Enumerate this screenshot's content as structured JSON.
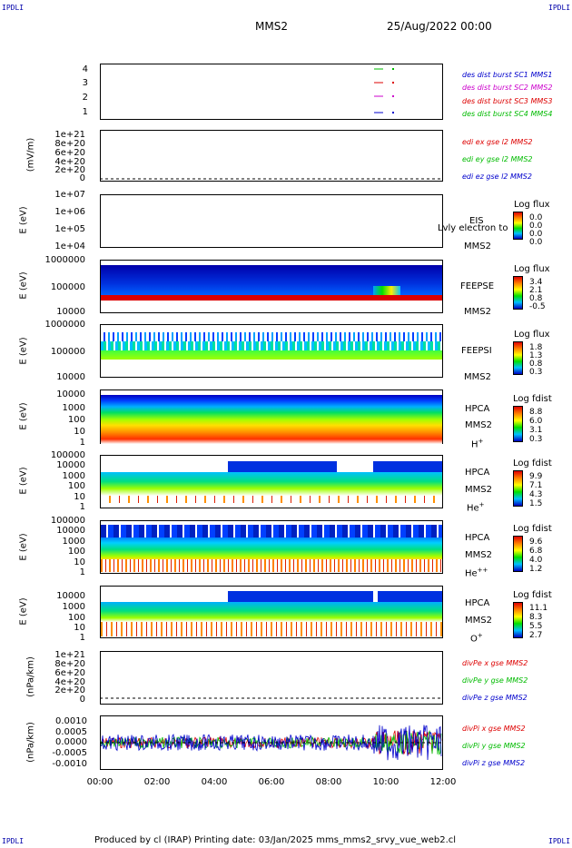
{
  "corners": {
    "tl": "IPDLI",
    "tr": "IPDLI",
    "bl": "IPDLI",
    "br": "IPDLI"
  },
  "header": {
    "mission": "MMS2",
    "date": "25/Aug/2022 00:00"
  },
  "footer": "Produced by cl (IRAP)   Printing date: 03/Jan/2025   mms_mms2_srvy_vue_web2.cl",
  "chart_data": [
    {
      "type": "line",
      "panel": "burst",
      "ytick_labels": [
        "4",
        "3",
        "2",
        "1"
      ],
      "ylim": [
        0.5,
        4.5
      ],
      "legend": [
        {
          "label": "des dist burst SC1 MMS1",
          "color": "#0000cc"
        },
        {
          "label": "des dist burst SC2 MMS2",
          "color": "#cc00cc"
        },
        {
          "label": "des dist burst SC3 MMS3",
          "color": "#dd0000"
        },
        {
          "label": "des dist burst SC4 MMS4",
          "color": "#00bb00"
        }
      ]
    },
    {
      "type": "line",
      "panel": "edi",
      "ylabel": "(mV/m)",
      "ytick_labels": [
        "1e+21",
        "8e+20",
        "6e+20",
        "4e+20",
        "2e+20",
        "0"
      ],
      "legend": [
        {
          "label": "edi ex gse l2 MMS2",
          "color": "#dd0000"
        },
        {
          "label": "edi ey gse l2 MMS2",
          "color": "#00bb00"
        },
        {
          "label": "edi ez gse l2 MMS2",
          "color": "#0000cc"
        }
      ]
    },
    {
      "type": "heatmap",
      "panel": "eis",
      "ylabel": "E (eV)",
      "ytick_labels": [
        "1e+07",
        "1e+06",
        "1e+05",
        "1e+04"
      ],
      "instrument": [
        "EIS",
        "MMS2"
      ],
      "overlay": "Lvly electron to",
      "cbar_title": "Log flux",
      "cbar_values": [
        "0.0",
        "0.0",
        "0.0",
        "0.0"
      ]
    },
    {
      "type": "heatmap",
      "panel": "feepse",
      "ylabel": "E (eV)",
      "ytick_labels": [
        "1000000",
        "100000",
        "10000"
      ],
      "instrument": [
        "FEEPSE",
        "MMS2"
      ],
      "cbar_title": "Log flux",
      "cbar_values": [
        "3.4",
        "2.1",
        "0.8",
        "-0.5"
      ]
    },
    {
      "type": "heatmap",
      "panel": "feepsi",
      "ylabel": "E (eV)",
      "ytick_labels": [
        "1000000",
        "100000",
        "10000"
      ],
      "instrument": [
        "FEEPSI",
        "MMS2"
      ],
      "cbar_title": "Log flux",
      "cbar_values": [
        "1.8",
        "1.3",
        "0.8",
        "0.3"
      ]
    },
    {
      "type": "heatmap",
      "panel": "hpca_h",
      "ylabel": "E (eV)",
      "ytick_labels": [
        "10000",
        "1000",
        "100",
        "10",
        "1"
      ],
      "instrument": [
        "HPCA",
        "MMS2"
      ],
      "species": "H",
      "species_sup": "+",
      "cbar_title": "Log fdist",
      "cbar_values": [
        "8.8",
        "6.0",
        "3.1",
        "0.3"
      ]
    },
    {
      "type": "heatmap",
      "panel": "hpca_he",
      "ylabel": "E (eV)",
      "ytick_labels": [
        "100000",
        "10000",
        "1000",
        "100",
        "10",
        "1"
      ],
      "instrument": [
        "HPCA",
        "MMS2"
      ],
      "species": "He",
      "species_sup": "+",
      "cbar_title": "Log fdist",
      "cbar_values": [
        "9.9",
        "7.1",
        "4.3",
        "1.5"
      ]
    },
    {
      "type": "heatmap",
      "panel": "hpca_hepp",
      "ylabel": "E (eV)",
      "ytick_labels": [
        "100000",
        "10000",
        "1000",
        "100",
        "10",
        "1"
      ],
      "instrument": [
        "HPCA",
        "MMS2"
      ],
      "species": "He",
      "species_sup": "++",
      "cbar_title": "Log fdist",
      "cbar_values": [
        "9.6",
        "6.8",
        "4.0",
        "1.2"
      ]
    },
    {
      "type": "heatmap",
      "panel": "hpca_o",
      "ylabel": "E (eV)",
      "ytick_labels": [
        "10000",
        "1000",
        "100",
        "10",
        "1"
      ],
      "instrument": [
        "HPCA",
        "MMS2"
      ],
      "species": "O",
      "species_sup": "+",
      "cbar_title": "Log fdist",
      "cbar_values": [
        "11.1",
        "8.3",
        "5.5",
        "2.7"
      ]
    },
    {
      "type": "line",
      "panel": "divpe",
      "ylabel": "(nPa/km)",
      "ytick_labels": [
        "1e+21",
        "8e+20",
        "6e+20",
        "4e+20",
        "2e+20",
        "0"
      ],
      "legend": [
        {
          "label": "divPe x gse MMS2",
          "color": "#dd0000"
        },
        {
          "label": "divPe y gse MMS2",
          "color": "#00bb00"
        },
        {
          "label": "divPe z gse MMS2",
          "color": "#0000cc"
        }
      ]
    },
    {
      "type": "line",
      "panel": "divpi",
      "ylabel": "(nPa/km)",
      "ytick_labels": [
        "0.0010",
        "0.0005",
        "0.0000",
        "-0.0005",
        "-0.0010"
      ],
      "ylim": [
        -0.0013,
        0.0013
      ],
      "legend": [
        {
          "label": "divPi x gse MMS2",
          "color": "#dd0000"
        },
        {
          "label": "divPi y gse MMS2",
          "color": "#00bb00"
        },
        {
          "label": "divPi z gse MMS2",
          "color": "#0000cc"
        }
      ]
    }
  ],
  "xaxis": {
    "tick_labels": [
      "00:00",
      "02:00",
      "04:00",
      "06:00",
      "08:00",
      "10:00",
      "12:00"
    ]
  }
}
